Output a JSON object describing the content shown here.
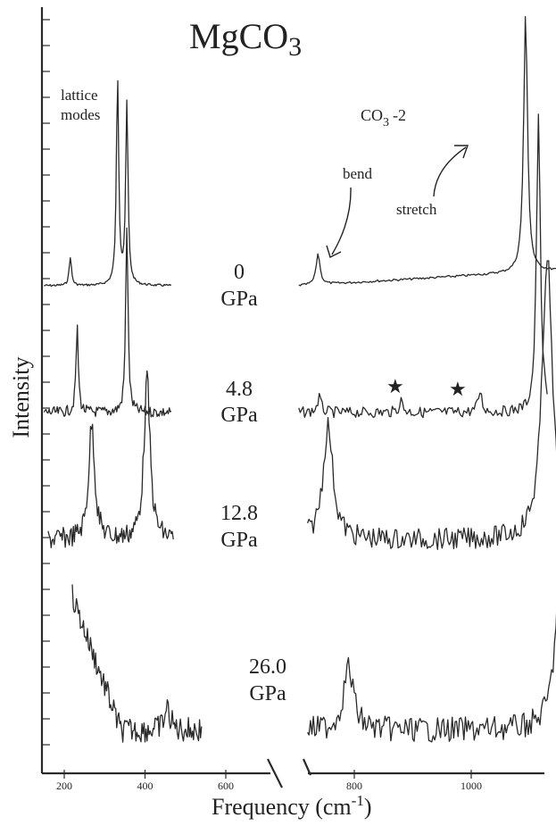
{
  "chart_data": {
    "type": "line",
    "title": "MgCO3",
    "title_main": "MgCO",
    "title_sub": "3",
    "xlabel": "Frequency (cm-1)",
    "xlabel_main": "Frequency (cm",
    "xlabel_sup": "-1",
    "xlabel_close": ")",
    "ylabel": "Intensity",
    "x_axis_break": true,
    "x_segments": [
      {
        "range": [
          150,
          650
        ],
        "ticks": [
          200,
          400,
          600
        ]
      },
      {
        "range": [
          650,
          1200
        ],
        "ticks": [
          800,
          1000,
          1200
        ]
      }
    ],
    "annotations": {
      "lattice_line1": "lattice",
      "lattice_line2": "modes",
      "carbonate": "CO3 -2",
      "carbonate_main": "CO",
      "carbonate_sub": "3",
      "carbonate_charge": "-2",
      "bend": "bend",
      "stretch": "stretch",
      "star": "★"
    },
    "series": [
      {
        "pressure": "0",
        "unit": "GPa",
        "lattice_peaks": [
          {
            "x": 215,
            "rel": 0.14
          },
          {
            "x": 332,
            "rel": 1.0
          },
          {
            "x": 355,
            "rel": 0.88
          }
        ],
        "carbonate_peaks": [
          {
            "x": 738,
            "rel": 0.12
          },
          {
            "x": 1093,
            "rel": 1.0
          }
        ]
      },
      {
        "pressure": "4.8",
        "unit": "GPa",
        "lattice_peaks": [
          {
            "x": 232,
            "rel": 0.45
          },
          {
            "x": 355,
            "rel": 1.0
          }
        ],
        "carbonate_peaks": [
          {
            "x": 740,
            "rel": 0.05
          },
          {
            "x": 880,
            "rel": 0.04
          },
          {
            "x": 1015,
            "rel": 0.07
          },
          {
            "x": 1115,
            "rel": 1.0
          }
        ],
        "starred_peaks": [
          880,
          1015
        ]
      },
      {
        "pressure": "12.8",
        "unit": "GPa",
        "lattice_peaks": [
          {
            "x": 268,
            "rel": 0.72
          },
          {
            "x": 405,
            "rel": 1.0
          }
        ],
        "carbonate_peaks": [
          {
            "x": 755,
            "rel": 0.4
          },
          {
            "x": 1130,
            "rel": 1.0
          }
        ]
      },
      {
        "pressure": "26.0",
        "unit": "GPa",
        "lattice_peaks": [
          {
            "x": 455,
            "rel": 0.4
          }
        ],
        "carbonate_peaks": [
          {
            "x": 790,
            "rel": 0.3
          },
          {
            "x": 1155,
            "rel": 1.0
          }
        ]
      }
    ]
  }
}
